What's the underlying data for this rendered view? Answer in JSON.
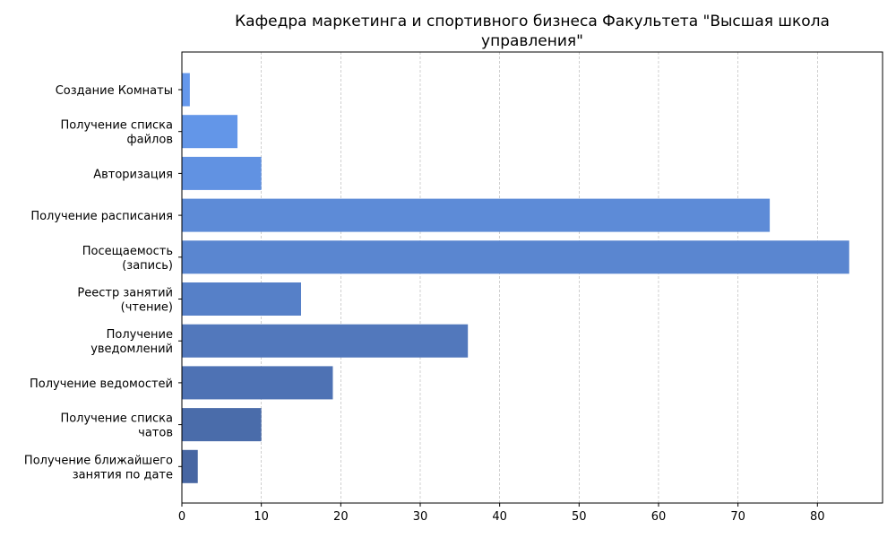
{
  "chart_data": {
    "type": "bar",
    "orientation": "horizontal",
    "title_lines": [
      "Кафедра маркетинга и спортивного бизнеса Факультета \"Высшая школа",
      "управления\""
    ],
    "categories": [
      {
        "lines": [
          "Создание Комнаты"
        ]
      },
      {
        "lines": [
          "Получение списка",
          "файлов"
        ]
      },
      {
        "lines": [
          "Авторизация"
        ]
      },
      {
        "lines": [
          "Получение расписания"
        ]
      },
      {
        "lines": [
          "Посещаемость",
          "(запись)"
        ]
      },
      {
        "lines": [
          "Реестр занятий",
          "(чтение)"
        ]
      },
      {
        "lines": [
          "Получение",
          "уведомлений"
        ]
      },
      {
        "lines": [
          "Получение ведомостей"
        ]
      },
      {
        "lines": [
          "Получение списка",
          "чатов"
        ]
      },
      {
        "lines": [
          "Получение ближайшего",
          "занятия по дате"
        ]
      }
    ],
    "values": [
      1,
      7,
      10,
      74,
      84,
      15,
      36,
      19,
      10,
      2
    ],
    "bar_colors": [
      "#6598ec",
      "#6396e8",
      "#6192e2",
      "#5d8bd7",
      "#5a86d0",
      "#5680c8",
      "#5278bc",
      "#4e72b4",
      "#4a6caa",
      "#4766a2"
    ],
    "xlim": [
      0,
      88.2
    ],
    "xticks": [
      0,
      10,
      20,
      30,
      40,
      50,
      60,
      70,
      80
    ],
    "grid": "x-dashed"
  }
}
